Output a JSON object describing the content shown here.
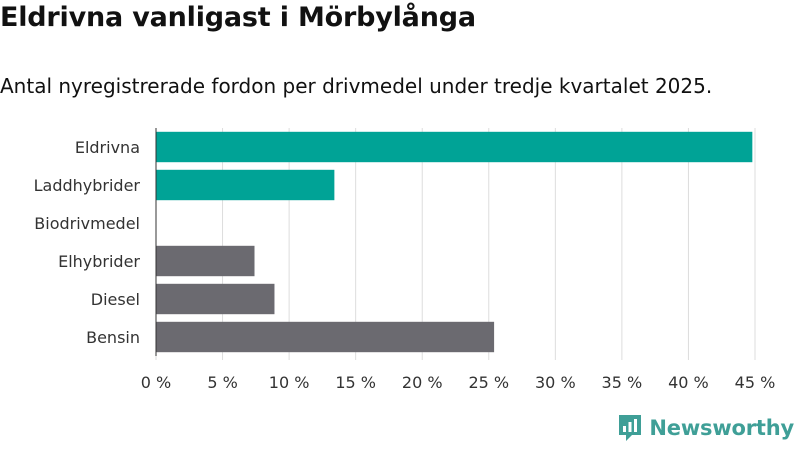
{
  "header": {
    "title": "Eldrivna vanligast i Mörbylånga",
    "subtitle": "Antal nyregistrerade fordon per drivmedel under tredje kvartalet 2025."
  },
  "brand": {
    "name": "Newsworthy",
    "color": "#3f9f97"
  },
  "colors": {
    "highlight": "#00a396",
    "default": "#6b6a70"
  },
  "chart_data": {
    "type": "bar",
    "orientation": "horizontal",
    "categories": [
      "Eldrivna",
      "Laddhybrider",
      "Biodrivmedel",
      "Elhybrider",
      "Diesel",
      "Bensin"
    ],
    "values": [
      44.8,
      13.4,
      0,
      7.4,
      8.9,
      25.4
    ],
    "highlighted": [
      true,
      true,
      true,
      false,
      false,
      false
    ],
    "unit": "%",
    "xlim": [
      0,
      45
    ],
    "xticks": [
      0,
      5,
      10,
      15,
      20,
      25,
      30,
      35,
      40,
      45
    ],
    "xtick_labels": [
      "0 %",
      "5 %",
      "10 %",
      "15 %",
      "20 %",
      "25 %",
      "30 %",
      "35 %",
      "40 %",
      "45 %"
    ],
    "grid": true,
    "xlabel": "",
    "ylabel": ""
  }
}
